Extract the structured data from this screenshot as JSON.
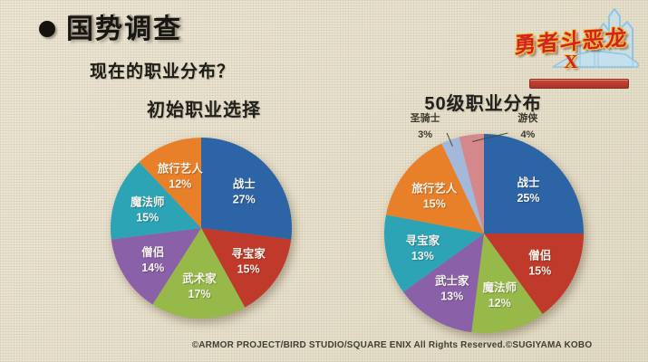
{
  "slide": {
    "title": "国势调查",
    "subtitle": "现在的职业分布？",
    "copyright": "©ARMOR PROJECT/BIRD STUDIO/SQUARE ENIX All Rights Reserved.©SUGIYAMA KOBO"
  },
  "logo": {
    "name": "勇者斗恶龙",
    "mark": "X",
    "colors": {
      "text": "#d32220",
      "outline": "#f2c23e",
      "castle": "#8ec6e6"
    }
  },
  "chart_data": [
    {
      "type": "pie",
      "title": "初始职业选择",
      "start_angle": 0,
      "direction": "clockwise",
      "labels_inside": true,
      "slices": [
        {
          "label": "战士",
          "value": 27,
          "color": "#2d64a6"
        },
        {
          "label": "寻宝家",
          "value": 15,
          "color": "#c03a2b"
        },
        {
          "label": "武术家",
          "value": 17,
          "color": "#96b94a"
        },
        {
          "label": "僧侣",
          "value": 14,
          "color": "#8a61a8"
        },
        {
          "label": "魔法师",
          "value": 15,
          "color": "#2da4b6"
        },
        {
          "label": "旅行艺人",
          "value": 12,
          "color": "#e8802a"
        }
      ]
    },
    {
      "type": "pie",
      "title": "50级职业分布",
      "start_angle": 0,
      "direction": "clockwise",
      "labels_inside": true,
      "slices": [
        {
          "label": "战士",
          "value": 25,
          "color": "#2d64a6"
        },
        {
          "label": "僧侣",
          "value": 15,
          "color": "#c03a2b"
        },
        {
          "label": "魔法师",
          "value": 12,
          "color": "#96b94a"
        },
        {
          "label": "武士家",
          "value": 13,
          "color": "#8a61a8"
        },
        {
          "label": "寻宝家",
          "value": 13,
          "color": "#2da4b6"
        },
        {
          "label": "旅行艺人",
          "value": 15,
          "color": "#e8802a"
        },
        {
          "label": "圣骑士",
          "value": 3,
          "color": "#a4b8da",
          "label_outside": "left"
        },
        {
          "label": "游侠",
          "value": 4,
          "color": "#d4888c",
          "label_outside": "right"
        }
      ]
    }
  ]
}
